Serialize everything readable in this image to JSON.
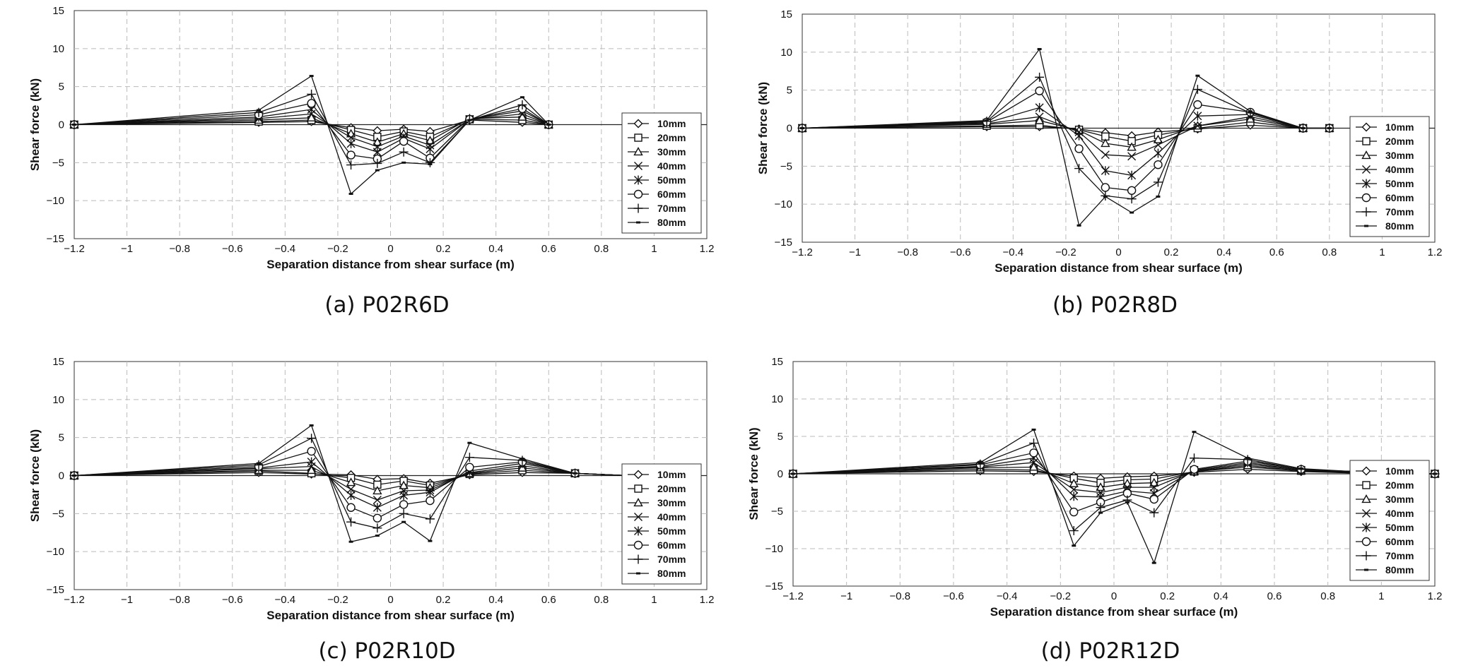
{
  "chart_data": [
    {
      "type": "line",
      "caption": "(a)  P02R6D",
      "xlabel": "Separation distance from shear surface (m)",
      "ylabel": "Shear force (kN)",
      "xlim": [
        -1.2,
        1.2
      ],
      "ylim": [
        -15,
        15
      ],
      "xticks": [
        "-1.2",
        "-1",
        "-0.8",
        "-0.6",
        "-0.4",
        "-0.2",
        "0",
        "0.2",
        "0.4",
        "0.6",
        "0.8",
        "1",
        "1.2"
      ],
      "yticks": [
        "15",
        "10",
        "5",
        "0",
        "-5",
        "-10",
        "-15"
      ],
      "grid": true,
      "legend_position": "bottom-right",
      "x": [
        -1.2,
        -0.5,
        -0.3,
        -0.15,
        -0.05,
        0.05,
        0.15,
        0.3,
        0.5,
        0.6
      ],
      "series": [
        {
          "name": "10mm",
          "marker": "diamond",
          "values": [
            0,
            0.3,
            0.4,
            -0.4,
            -0.8,
            -0.6,
            -0.9,
            0.6,
            0.3,
            0
          ]
        },
        {
          "name": "20mm",
          "marker": "square",
          "values": [
            0,
            0.4,
            0.6,
            -0.7,
            -1.6,
            -0.9,
            -1.6,
            0.7,
            0.6,
            0
          ]
        },
        {
          "name": "30mm",
          "marker": "triangle",
          "values": [
            0,
            0.6,
            0.9,
            -1.2,
            -2.3,
            -1.2,
            -2.1,
            0.8,
            1.0,
            0
          ]
        },
        {
          "name": "40mm",
          "marker": "x",
          "values": [
            0,
            0.8,
            1.4,
            -1.7,
            -2.9,
            -1.5,
            -2.7,
            0.7,
            1.4,
            0
          ]
        },
        {
          "name": "50mm",
          "marker": "asterisk",
          "values": [
            0,
            1.0,
            2.0,
            -2.5,
            -3.6,
            -1.8,
            -3.2,
            0.7,
            1.8,
            0
          ]
        },
        {
          "name": "60mm",
          "marker": "circle",
          "values": [
            0,
            1.3,
            2.8,
            -4.0,
            -4.5,
            -2.2,
            -4.4,
            0.7,
            2.1,
            0
          ]
        },
        {
          "name": "70mm",
          "marker": "plus",
          "values": [
            0,
            1.6,
            4.0,
            -5.3,
            -5.1,
            -3.6,
            -5.0,
            0.6,
            2.6,
            0
          ]
        },
        {
          "name": "80mm",
          "marker": "dash",
          "values": [
            0,
            1.9,
            6.4,
            -9.1,
            -6.0,
            -5.0,
            -5.2,
            0.6,
            3.6,
            0
          ]
        }
      ]
    },
    {
      "type": "line",
      "caption": "(b)  P02R8D",
      "xlabel": "Separation distance from shear surface (m)",
      "ylabel": "Shear force (kN)",
      "xlim": [
        -1.2,
        1.2
      ],
      "ylim": [
        -15,
        15
      ],
      "xticks": [
        "-1.2",
        "-1",
        "-0.8",
        "-0.6",
        "-0.4",
        "-0.2",
        "0",
        "0.2",
        "0.4",
        "0.6",
        "0.8",
        "1",
        "1.2"
      ],
      "yticks": [
        "15",
        "10",
        "5",
        "0",
        "-5",
        "-10",
        "-15"
      ],
      "grid": true,
      "legend_position": "bottom-right",
      "x": [
        -1.2,
        -0.5,
        -0.3,
        -0.15,
        -0.05,
        0.05,
        0.15,
        0.3,
        0.5,
        0.7,
        0.8
      ],
      "series": [
        {
          "name": "10mm",
          "marker": "diamond",
          "values": [
            0,
            0.2,
            0.2,
            -0.1,
            -0.6,
            -1.0,
            -0.5,
            -0.1,
            0.4,
            0,
            0
          ]
        },
        {
          "name": "20mm",
          "marker": "square",
          "values": [
            0,
            0.3,
            0.4,
            -0.2,
            -1.1,
            -1.7,
            -0.9,
            0.0,
            0.8,
            0,
            0
          ]
        },
        {
          "name": "30mm",
          "marker": "triangle",
          "values": [
            0,
            0.5,
            1.0,
            -0.3,
            -2.0,
            -2.5,
            -1.5,
            0.3,
            1.2,
            0,
            0
          ]
        },
        {
          "name": "40mm",
          "marker": "x",
          "values": [
            0,
            0.6,
            1.5,
            -0.5,
            -3.5,
            -3.7,
            -2.2,
            0.3,
            1.5,
            0,
            0
          ]
        },
        {
          "name": "50mm",
          "marker": "asterisk",
          "values": [
            0,
            0.7,
            2.7,
            -1.0,
            -5.6,
            -6.2,
            -3.3,
            1.6,
            1.8,
            0,
            0
          ]
        },
        {
          "name": "60mm",
          "marker": "circle",
          "values": [
            0,
            0.8,
            4.9,
            -2.7,
            -7.8,
            -8.2,
            -4.8,
            3.1,
            2.1,
            0,
            0
          ]
        },
        {
          "name": "70mm",
          "marker": "plus",
          "values": [
            0,
            0.9,
            6.7,
            -5.3,
            -8.9,
            -9.3,
            -7.1,
            5.1,
            2.0,
            0,
            0
          ]
        },
        {
          "name": "80mm",
          "marker": "dash",
          "values": [
            0,
            1.0,
            10.4,
            -12.8,
            -9.0,
            -11.1,
            -9.0,
            6.9,
            2.2,
            0,
            0
          ]
        }
      ]
    },
    {
      "type": "line",
      "caption": "(c)  P02R10D",
      "xlabel": "Separation distance from shear surface (m)",
      "ylabel": "Shear force (kN)",
      "xlim": [
        -1.2,
        1.2
      ],
      "ylim": [
        -15,
        15
      ],
      "xticks": [
        "-1.2",
        "-1",
        "-0.8",
        "-0.6",
        "-0.4",
        "-0.2",
        "0",
        "0.2",
        "0.4",
        "0.6",
        "0.8",
        "1",
        "1.2"
      ],
      "yticks": [
        "15",
        "10",
        "5",
        "0",
        "-5",
        "-10",
        "-15"
      ],
      "grid": true,
      "legend_position": "bottom-right",
      "x": [
        -1.2,
        -0.5,
        -0.3,
        -0.15,
        -0.05,
        0.05,
        0.15,
        0.3,
        0.5,
        0.7,
        0.9,
        1.0
      ],
      "series": [
        {
          "name": "10mm",
          "marker": "diamond",
          "values": [
            0,
            0.4,
            0.2,
            0.1,
            -0.5,
            -0.4,
            -1.0,
            0.1,
            0.4,
            0.3,
            0,
            0
          ]
        },
        {
          "name": "20mm",
          "marker": "square",
          "values": [
            0,
            0.6,
            0.3,
            -0.3,
            -1.2,
            -0.7,
            -1.3,
            0.2,
            0.7,
            0.3,
            0,
            0
          ]
        },
        {
          "name": "30mm",
          "marker": "triangle",
          "values": [
            0,
            0.7,
            0.7,
            -0.9,
            -2.0,
            -1.3,
            -1.6,
            0.3,
            1.0,
            0.3,
            0,
            0
          ]
        },
        {
          "name": "40mm",
          "marker": "x",
          "values": [
            0,
            0.9,
            1.2,
            -1.8,
            -3.2,
            -2.0,
            -1.9,
            0.4,
            1.3,
            0.3,
            0,
            0
          ]
        },
        {
          "name": "50mm",
          "marker": "asterisk",
          "values": [
            0,
            1.0,
            1.8,
            -2.6,
            -4.2,
            -2.6,
            -2.2,
            0.6,
            1.6,
            0.3,
            0,
            0
          ]
        },
        {
          "name": "60mm",
          "marker": "circle",
          "values": [
            0,
            1.2,
            3.2,
            -4.2,
            -5.6,
            -3.8,
            -3.3,
            1.1,
            1.8,
            0.3,
            0,
            0
          ]
        },
        {
          "name": "70mm",
          "marker": "plus",
          "values": [
            0,
            1.4,
            4.9,
            -6.1,
            -6.9,
            -5.0,
            -5.7,
            2.4,
            2.0,
            0.3,
            0,
            0
          ]
        },
        {
          "name": "80mm",
          "marker": "dash",
          "values": [
            0,
            1.6,
            6.6,
            -8.7,
            -7.9,
            -6.1,
            -8.6,
            4.3,
            2.2,
            0.3,
            0,
            0
          ]
        }
      ]
    },
    {
      "type": "line",
      "caption": "(d)  P02R12D",
      "xlabel": "Separation distance from shear surface (m)",
      "ylabel": "Shear force (kN)",
      "xlim": [
        -1.2,
        1.2
      ],
      "ylim": [
        -15,
        15
      ],
      "xticks": [
        "-1.2",
        "-1",
        "-0.8",
        "-0.6",
        "-0.4",
        "-0.2",
        "0",
        "0.2",
        "0.4",
        "0.6",
        "0.8",
        "1",
        "1.2"
      ],
      "yticks": [
        "15",
        "10",
        "5",
        "0",
        "-5",
        "-10",
        "-15"
      ],
      "grid": true,
      "legend_position": "bottom-right",
      "x": [
        -1.2,
        -0.5,
        -0.3,
        -0.15,
        -0.05,
        0.05,
        0.15,
        0.3,
        0.5,
        0.7,
        0.9,
        1.1,
        1.2
      ],
      "series": [
        {
          "name": "10mm",
          "marker": "diamond",
          "values": [
            0,
            0.4,
            0.3,
            -0.3,
            -0.6,
            -0.4,
            -0.3,
            0.2,
            0.6,
            0.3,
            0.1,
            0,
            0
          ]
        },
        {
          "name": "20mm",
          "marker": "square",
          "values": [
            0,
            0.6,
            0.5,
            -0.6,
            -1.2,
            -0.8,
            -0.7,
            0.3,
            0.9,
            0.4,
            0.1,
            0,
            0
          ]
        },
        {
          "name": "30mm",
          "marker": "triangle",
          "values": [
            0,
            0.8,
            0.9,
            -1.3,
            -1.8,
            -1.3,
            -1.2,
            0.3,
            1.1,
            0.4,
            0.2,
            0,
            0
          ]
        },
        {
          "name": "40mm",
          "marker": "x",
          "values": [
            0,
            0.9,
            1.5,
            -2.1,
            -2.5,
            -1.8,
            -1.8,
            0.4,
            1.3,
            0.5,
            0.2,
            0,
            0
          ]
        },
        {
          "name": "50mm",
          "marker": "asterisk",
          "values": [
            0,
            1.0,
            2.1,
            -3.0,
            -3.1,
            -2.3,
            -2.6,
            0.5,
            1.5,
            0.5,
            0.3,
            0,
            0
          ]
        },
        {
          "name": "60mm",
          "marker": "circle",
          "values": [
            0,
            1.2,
            2.8,
            -5.1,
            -3.8,
            -2.6,
            -3.4,
            0.6,
            1.7,
            0.6,
            0.3,
            0,
            0
          ]
        },
        {
          "name": "70mm",
          "marker": "plus",
          "values": [
            0,
            1.3,
            4.1,
            -7.6,
            -4.5,
            -3.5,
            -5.2,
            2.1,
            1.9,
            0.6,
            0.3,
            0,
            0
          ]
        },
        {
          "name": "80mm",
          "marker": "dash",
          "values": [
            0,
            1.5,
            5.9,
            -9.6,
            -5.2,
            -3.8,
            -11.9,
            5.6,
            2.1,
            0.7,
            0.3,
            0,
            0
          ]
        }
      ]
    }
  ]
}
